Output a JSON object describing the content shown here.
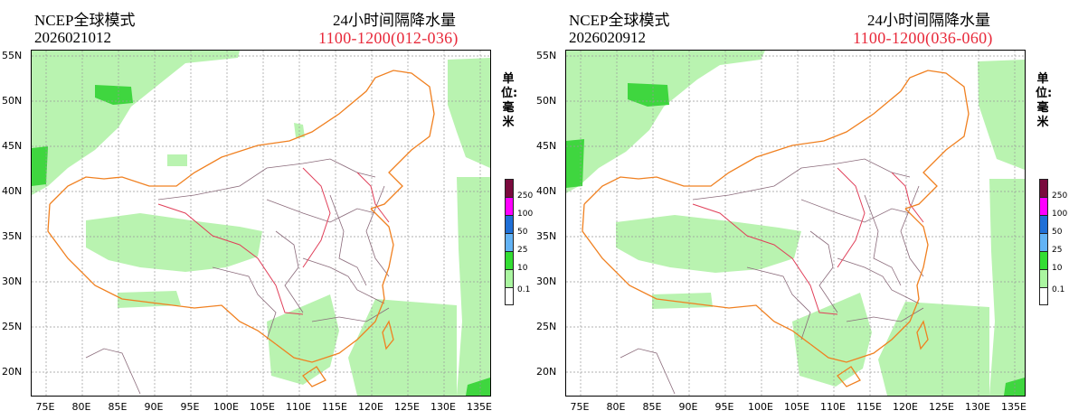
{
  "panels": [
    {
      "model": "NCEP全球模式",
      "init_time": "2026021012",
      "product": "24小时间隔降水量",
      "valid_period": "1100-1200(012-036)"
    },
    {
      "model": "NCEP全球模式",
      "init_time": "2026020912",
      "product": "24小时间隔降水量",
      "valid_period": "1100-1200(036-060)"
    }
  ],
  "unit": "单位: 毫米",
  "lat_labels": [
    "55N",
    "50N",
    "45N",
    "40N",
    "35N",
    "30N",
    "25N",
    "20N"
  ],
  "lon_labels": [
    "75E",
    "80E",
    "85E",
    "90E",
    "95E",
    "100E",
    "105E",
    "110E",
    "115E",
    "120E",
    "125E",
    "130E",
    "135E"
  ],
  "legend": {
    "levels": [
      "250",
      "100",
      "50",
      "25",
      "10",
      "0.1"
    ],
    "colors": [
      "#7a0a3d",
      "#ff00ff",
      "#1f6fd6",
      "#63b3f5",
      "#33dd33",
      "#aaf5a0",
      "#ffffff"
    ]
  },
  "colors": {
    "coastline": "#f08020",
    "province_border": "#8a6a7a",
    "major_river_border": "#e0405a",
    "grid": "#999999",
    "rain_light": "#b9f3b0",
    "rain_moderate": "#3fd63f",
    "title_accent": "#e8293a"
  }
}
